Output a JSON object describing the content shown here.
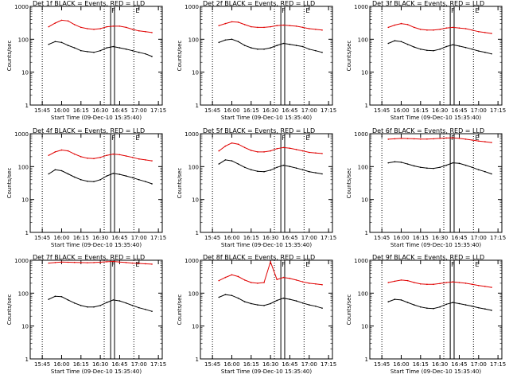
{
  "colors": {
    "black_series": "#000000",
    "red_series": "#e00000",
    "axes": "#000000",
    "background": "#ffffff"
  },
  "shared": {
    "ylabel": "Counts/sec",
    "xlabel": "Start Time (09-Dec-10 15:35:40)",
    "x_ticks": [
      "15:45",
      "16:00",
      "16:15",
      "16:30",
      "16:45",
      "17:00",
      "17:15"
    ],
    "y_ticks": [
      "1",
      "10",
      "100",
      "1000"
    ],
    "marker_labels": [
      "F",
      "E"
    ]
  },
  "chart_data": [
    {
      "type": "line",
      "title": "Det 1f BLACK = Events, RED = LLD",
      "xlabel": "Start Time (09-Dec-10 15:35:40)",
      "ylabel": "Counts/sec",
      "xlim": [
        "15:35:40",
        "17:18"
      ],
      "ylim": [
        1,
        1000
      ],
      "yscale": "log",
      "x": [
        "15:50",
        "15:55",
        "16:00",
        "16:05",
        "16:10",
        "16:15",
        "16:20",
        "16:25",
        "16:30",
        "16:35",
        "16:40",
        "16:45",
        "16:50",
        "16:55",
        "17:00",
        "17:05",
        "17:10"
      ],
      "series": [
        {
          "name": "LLD",
          "color": "red",
          "values": [
            240,
            310,
            380,
            360,
            280,
            230,
            210,
            200,
            210,
            240,
            250,
            250,
            230,
            200,
            180,
            170,
            160
          ]
        },
        {
          "name": "Events",
          "color": "black",
          "values": [
            70,
            85,
            80,
            65,
            55,
            45,
            42,
            40,
            45,
            55,
            60,
            55,
            50,
            45,
            40,
            36,
            30
          ]
        }
      ],
      "marker_lines": [
        "15:45",
        "16:33",
        "16:56"
      ],
      "band": [
        "16:38",
        "16:41"
      ]
    },
    {
      "type": "line",
      "title": "Det 2f BLACK = Events, RED = LLD",
      "xlabel": "Start Time (09-Dec-10 15:35:40)",
      "ylabel": "Counts/sec",
      "xlim": [
        "15:35:40",
        "17:18"
      ],
      "ylim": [
        1,
        1000
      ],
      "yscale": "log",
      "x": [
        "15:50",
        "15:55",
        "16:00",
        "16:05",
        "16:10",
        "16:15",
        "16:20",
        "16:25",
        "16:30",
        "16:35",
        "16:40",
        "16:45",
        "16:50",
        "16:55",
        "17:00",
        "17:05",
        "17:10"
      ],
      "series": [
        {
          "name": "LLD",
          "color": "red",
          "values": [
            260,
            300,
            340,
            330,
            280,
            240,
            230,
            230,
            240,
            260,
            270,
            260,
            250,
            230,
            210,
            200,
            190
          ]
        },
        {
          "name": "Events",
          "color": "black",
          "values": [
            80,
            95,
            100,
            85,
            65,
            55,
            50,
            50,
            55,
            65,
            75,
            70,
            65,
            60,
            50,
            45,
            40
          ]
        }
      ],
      "marker_lines": [
        "15:45",
        "16:33",
        "16:56"
      ],
      "band": [
        "16:38",
        "16:41"
      ]
    },
    {
      "type": "line",
      "title": "Det 3f BLACK = Events, RED = LLD",
      "xlabel": "Start Time (09-Dec-10 15:35:40)",
      "ylabel": "Counts/sec",
      "xlim": [
        "15:35:40",
        "17:18"
      ],
      "ylim": [
        1,
        1000
      ],
      "yscale": "log",
      "x": [
        "15:50",
        "15:55",
        "16:00",
        "16:05",
        "16:10",
        "16:15",
        "16:20",
        "16:25",
        "16:30",
        "16:35",
        "16:40",
        "16:45",
        "16:50",
        "16:55",
        "17:00",
        "17:05",
        "17:10"
      ],
      "series": [
        {
          "name": "LLD",
          "color": "red",
          "values": [
            230,
            270,
            300,
            280,
            230,
            200,
            190,
            190,
            200,
            220,
            230,
            220,
            210,
            190,
            170,
            160,
            150
          ]
        },
        {
          "name": "Events",
          "color": "black",
          "values": [
            75,
            90,
            85,
            70,
            58,
            50,
            46,
            45,
            50,
            60,
            68,
            62,
            56,
            50,
            44,
            40,
            36
          ]
        }
      ],
      "marker_lines": [
        "15:45",
        "16:33",
        "16:56"
      ],
      "band": [
        "16:38",
        "16:41"
      ]
    },
    {
      "type": "line",
      "title": "Det 4f BLACK = Events, RED = LLD",
      "xlabel": "Start Time (09-Dec-10 15:35:40)",
      "ylabel": "Counts/sec",
      "xlim": [
        "15:35:40",
        "17:18"
      ],
      "ylim": [
        1,
        1000
      ],
      "yscale": "log",
      "x": [
        "15:50",
        "15:55",
        "16:00",
        "16:05",
        "16:10",
        "16:15",
        "16:20",
        "16:25",
        "16:30",
        "16:35",
        "16:40",
        "16:45",
        "16:50",
        "16:55",
        "17:00",
        "17:05",
        "17:10"
      ],
      "series": [
        {
          "name": "LLD",
          "color": "red",
          "values": [
            220,
            280,
            320,
            300,
            240,
            200,
            180,
            175,
            190,
            220,
            240,
            230,
            210,
            190,
            170,
            160,
            150
          ]
        },
        {
          "name": "Events",
          "color": "black",
          "values": [
            60,
            80,
            75,
            60,
            48,
            40,
            36,
            35,
            40,
            52,
            62,
            58,
            52,
            46,
            40,
            35,
            30
          ]
        }
      ],
      "marker_lines": [
        "15:45",
        "16:33",
        "16:56"
      ],
      "band": [
        "16:38",
        "16:41"
      ]
    },
    {
      "type": "line",
      "title": "Det 5f BLACK = Events, RED = LLD",
      "xlabel": "Start Time (09-Dec-10 15:35:40)",
      "ylabel": "Counts/sec",
      "xlim": [
        "15:35:40",
        "17:18"
      ],
      "ylim": [
        1,
        1000
      ],
      "yscale": "log",
      "x": [
        "15:50",
        "15:55",
        "16:00",
        "16:05",
        "16:10",
        "16:15",
        "16:20",
        "16:25",
        "16:30",
        "16:35",
        "16:40",
        "16:45",
        "16:50",
        "16:55",
        "17:00",
        "17:05",
        "17:10"
      ],
      "series": [
        {
          "name": "LLD",
          "color": "red",
          "values": [
            300,
            420,
            520,
            480,
            380,
            310,
            280,
            280,
            300,
            350,
            380,
            360,
            330,
            300,
            270,
            260,
            250
          ]
        },
        {
          "name": "Events",
          "color": "black",
          "values": [
            120,
            160,
            150,
            120,
            95,
            80,
            72,
            70,
            78,
            95,
            110,
            100,
            90,
            80,
            70,
            65,
            60
          ]
        }
      ],
      "marker_lines": [
        "15:45",
        "16:33",
        "16:56"
      ],
      "band": [
        "16:38",
        "16:41"
      ]
    },
    {
      "type": "line",
      "title": "Det 6f BLACK = Events, RED = LLD",
      "xlabel": "Start Time (09-Dec-10 15:35:40)",
      "ylabel": "Counts/sec",
      "xlim": [
        "15:35:40",
        "17:18"
      ],
      "ylim": [
        1,
        1000
      ],
      "yscale": "log",
      "x": [
        "15:50",
        "15:55",
        "16:00",
        "16:05",
        "16:10",
        "16:15",
        "16:20",
        "16:25",
        "16:30",
        "16:35",
        "16:40",
        "16:45",
        "16:50",
        "16:55",
        "17:00",
        "17:05",
        "17:10"
      ],
      "series": [
        {
          "name": "LLD",
          "color": "red",
          "values": [
            680,
            700,
            720,
            710,
            700,
            690,
            690,
            700,
            720,
            740,
            750,
            720,
            680,
            640,
            600,
            570,
            540
          ]
        },
        {
          "name": "Events",
          "color": "black",
          "values": [
            130,
            140,
            135,
            120,
            105,
            95,
            90,
            88,
            95,
            110,
            130,
            125,
            110,
            95,
            80,
            70,
            60
          ]
        }
      ],
      "marker_lines": [
        "15:45",
        "16:33",
        "16:56"
      ],
      "band": [
        "16:38",
        "16:41"
      ]
    },
    {
      "type": "line",
      "title": "Det 7f BLACK = Events, RED = LLD",
      "xlabel": "Start Time (09-Dec-10 15:35:40)",
      "ylabel": "Counts/sec",
      "xlim": [
        "15:35:40",
        "17:18"
      ],
      "ylim": [
        1,
        1000
      ],
      "yscale": "log",
      "x": [
        "15:50",
        "15:55",
        "16:00",
        "16:05",
        "16:10",
        "16:15",
        "16:20",
        "16:25",
        "16:30",
        "16:35",
        "16:40",
        "16:45",
        "16:50",
        "16:55",
        "17:00",
        "17:05",
        "17:10"
      ],
      "series": [
        {
          "name": "LLD",
          "color": "red",
          "values": [
            820,
            850,
            880,
            870,
            860,
            850,
            840,
            850,
            870,
            900,
            920,
            880,
            850,
            820,
            800,
            780,
            760
          ]
        },
        {
          "name": "Events",
          "color": "black",
          "values": [
            65,
            80,
            78,
            62,
            50,
            42,
            38,
            38,
            42,
            52,
            62,
            58,
            50,
            42,
            36,
            32,
            28
          ]
        }
      ],
      "marker_lines": [
        "15:45",
        "16:33",
        "16:56"
      ],
      "band": [
        "16:38",
        "16:41"
      ]
    },
    {
      "type": "line",
      "title": "Det 8f BLACK = Events, RED = LLD",
      "xlabel": "Start Time (09-Dec-10 15:35:40)",
      "ylabel": "Counts/sec",
      "xlim": [
        "15:35:40",
        "17:18"
      ],
      "ylim": [
        1,
        1000
      ],
      "yscale": "log",
      "x": [
        "15:50",
        "15:55",
        "16:00",
        "16:05",
        "16:10",
        "16:15",
        "16:20",
        "16:25",
        "16:30",
        "16:35",
        "16:40",
        "16:45",
        "16:50",
        "16:55",
        "17:00",
        "17:05",
        "17:10"
      ],
      "series": [
        {
          "name": "LLD",
          "color": "red",
          "values": [
            240,
            300,
            360,
            320,
            250,
            210,
            200,
            210,
            900,
            260,
            300,
            280,
            250,
            220,
            200,
            190,
            180
          ]
        },
        {
          "name": "Events",
          "color": "black",
          "values": [
            75,
            90,
            85,
            70,
            55,
            48,
            44,
            42,
            48,
            60,
            70,
            65,
            58,
            50,
            44,
            40,
            35
          ]
        }
      ],
      "marker_lines": [
        "15:45",
        "16:33",
        "16:56"
      ],
      "band": [
        "16:38",
        "16:41"
      ]
    },
    {
      "type": "line",
      "title": "Det 9f BLACK = Events, RED = LLD",
      "xlabel": "Start Time (09-Dec-10 15:35:40)",
      "ylabel": "Counts/sec",
      "xlim": [
        "15:35:40",
        "17:18"
      ],
      "ylim": [
        1,
        1000
      ],
      "yscale": "log",
      "x": [
        "15:50",
        "15:55",
        "16:00",
        "16:05",
        "16:10",
        "16:15",
        "16:20",
        "16:25",
        "16:30",
        "16:35",
        "16:40",
        "16:45",
        "16:50",
        "16:55",
        "17:00",
        "17:05",
        "17:10"
      ],
      "series": [
        {
          "name": "LLD",
          "color": "red",
          "values": [
            210,
            230,
            250,
            240,
            210,
            190,
            185,
            185,
            195,
            210,
            220,
            210,
            200,
            185,
            170,
            160,
            150
          ]
        },
        {
          "name": "Events",
          "color": "black",
          "values": [
            55,
            65,
            62,
            52,
            44,
            38,
            35,
            34,
            38,
            46,
            52,
            48,
            44,
            40,
            36,
            33,
            30
          ]
        }
      ],
      "marker_lines": [
        "15:45",
        "16:33",
        "16:56"
      ],
      "band": [
        "16:38",
        "16:41"
      ]
    }
  ]
}
